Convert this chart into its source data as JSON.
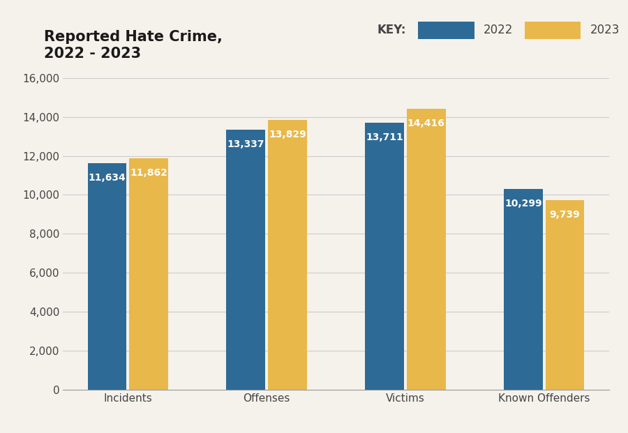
{
  "title": "Reported Hate Crime,\n2022 - 2023",
  "categories": [
    "Incidents",
    "Offenses",
    "Victims",
    "Known Offenders"
  ],
  "values_2022": [
    11634,
    13337,
    13711,
    10299
  ],
  "values_2023": [
    11862,
    13829,
    14416,
    9739
  ],
  "labels_2022": [
    "11,634",
    "13,337",
    "13,711",
    "10,299"
  ],
  "labels_2023": [
    "11,862",
    "13,829",
    "14,416",
    "9,739"
  ],
  "color_2022": "#2E6A96",
  "color_2023": "#E8B84B",
  "background_color": "#F5F2EC",
  "ylim": [
    0,
    16000
  ],
  "yticks": [
    0,
    2000,
    4000,
    6000,
    8000,
    10000,
    12000,
    14000,
    16000
  ],
  "bar_width": 0.28,
  "bar_gap": 0.02,
  "legend_label_2022": "2022",
  "legend_label_2023": "2023",
  "key_label": "KEY:",
  "title_fontsize": 15,
  "tick_fontsize": 11,
  "label_fontsize": 10,
  "legend_fontsize": 12
}
